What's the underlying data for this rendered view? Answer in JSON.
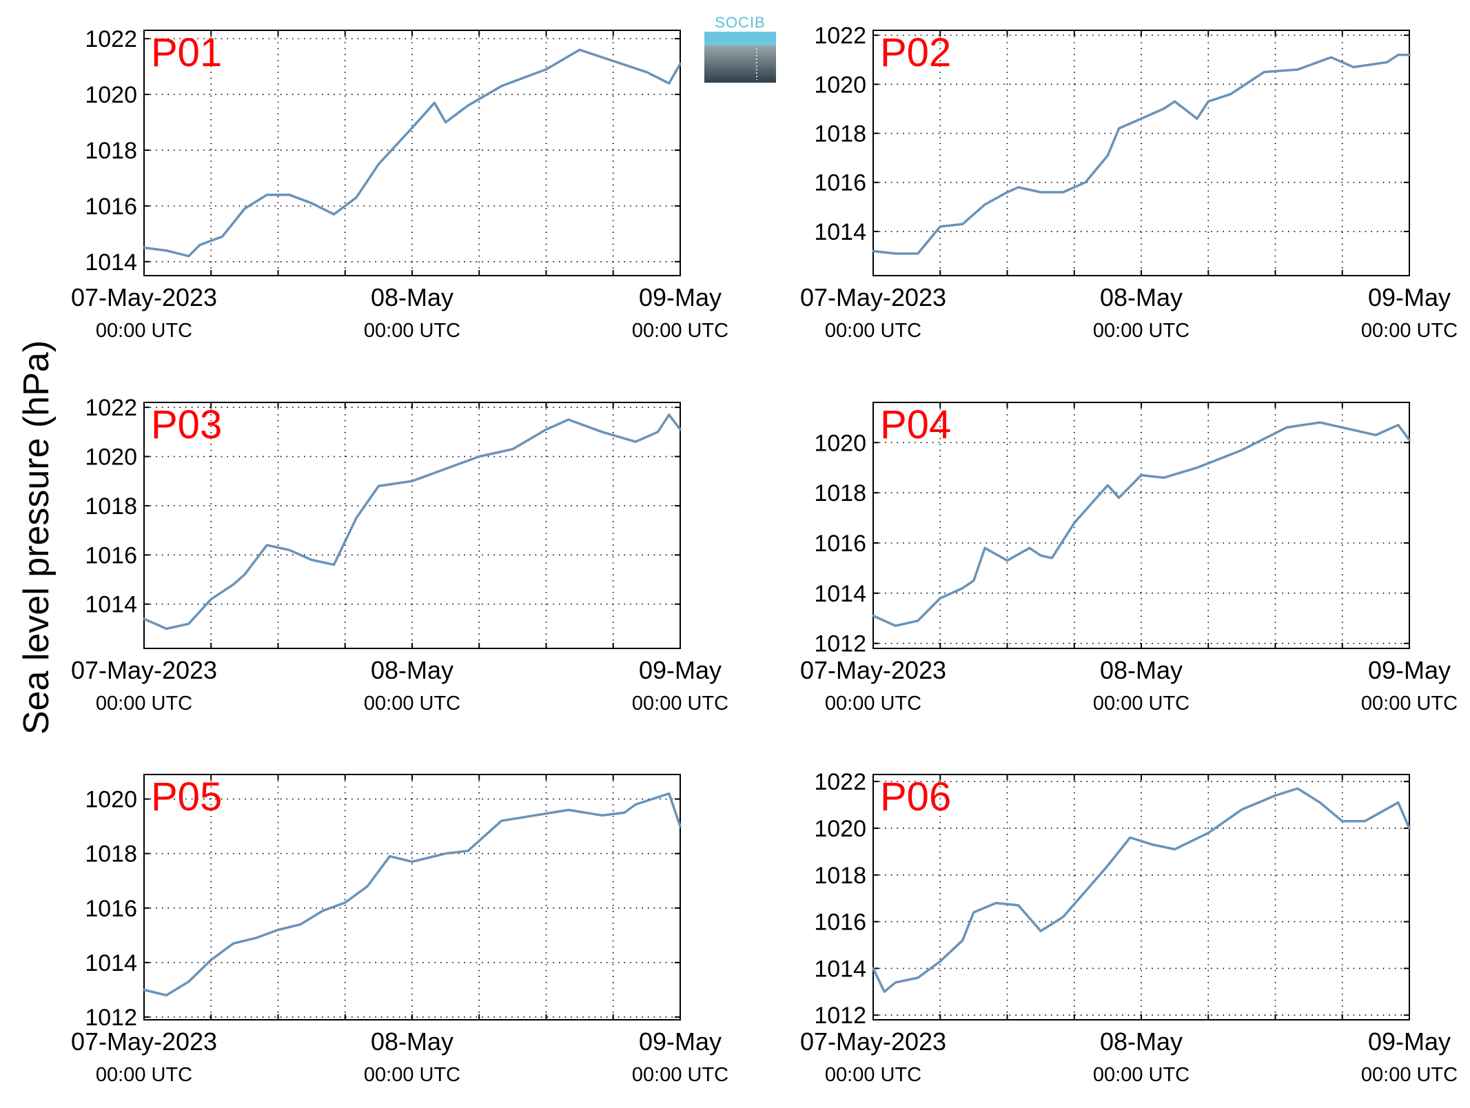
{
  "figure": {
    "ylabel": "Sea level pressure (hPa)",
    "logo_text": "SOCIB",
    "line_color": "#6a93b8",
    "label_color": "#ff0000"
  },
  "chart_data": [
    {
      "type": "line",
      "panel": "P01",
      "x_ticks": [
        {
          "date": "07-May-2023",
          "time": "00:00 UTC"
        },
        {
          "date": "08-May",
          "time": "00:00 UTC"
        },
        {
          "date": "09-May",
          "time": "00:00 UTC"
        }
      ],
      "xlim": [
        "2023-05-07 00:00",
        "2023-05-09 00:00"
      ],
      "ylim": [
        1013.5,
        1022.3
      ],
      "y_ticks": [
        1014,
        1016,
        1018,
        1020,
        1022
      ],
      "grid": true,
      "series": [
        {
          "x": [
            "2023-05-07 00:00",
            "2023-05-07 02:00",
            "2023-05-07 04:00",
            "2023-05-07 05:00",
            "2023-05-07 07:00",
            "2023-05-07 09:00",
            "2023-05-07 11:00",
            "2023-05-07 13:00",
            "2023-05-07 15:00",
            "2023-05-07 17:00",
            "2023-05-07 19:00",
            "2023-05-07 21:00",
            "2023-05-08 00:00",
            "2023-05-08 02:00",
            "2023-05-08 03:00",
            "2023-05-08 05:00",
            "2023-05-08 08:00",
            "2023-05-08 12:00",
            "2023-05-08 15:00",
            "2023-05-08 18:00",
            "2023-05-08 21:00",
            "2023-05-08 23:00",
            "2023-05-09 00:00"
          ],
          "y": [
            1014.5,
            1014.4,
            1014.2,
            1014.6,
            1014.9,
            1015.9,
            1016.4,
            1016.4,
            1016.1,
            1015.7,
            1016.3,
            1017.5,
            1018.8,
            1019.7,
            1019.0,
            1019.6,
            1020.3,
            1020.9,
            1021.6,
            1021.2,
            1020.8,
            1020.4,
            1021.1
          ]
        }
      ]
    },
    {
      "type": "line",
      "panel": "P02",
      "x_ticks": [
        {
          "date": "07-May-2023",
          "time": "00:00 UTC"
        },
        {
          "date": "08-May",
          "time": "00:00 UTC"
        },
        {
          "date": "09-May",
          "time": "00:00 UTC"
        }
      ],
      "xlim": [
        "2023-05-07 00:00",
        "2023-05-09 00:00"
      ],
      "ylim": [
        1012.2,
        1022.2
      ],
      "y_ticks": [
        1014,
        1016,
        1018,
        1020,
        1022
      ],
      "grid": true,
      "series": [
        {
          "x": [
            "2023-05-07 00:00",
            "2023-05-07 02:00",
            "2023-05-07 04:00",
            "2023-05-07 06:00",
            "2023-05-07 08:00",
            "2023-05-07 10:00",
            "2023-05-07 12:00",
            "2023-05-07 13:00",
            "2023-05-07 15:00",
            "2023-05-07 17:00",
            "2023-05-07 19:00",
            "2023-05-07 21:00",
            "2023-05-07 22:00",
            "2023-05-08 00:00",
            "2023-05-08 02:00",
            "2023-05-08 03:00",
            "2023-05-08 05:00",
            "2023-05-08 06:00",
            "2023-05-08 08:00",
            "2023-05-08 11:00",
            "2023-05-08 14:00",
            "2023-05-08 17:00",
            "2023-05-08 19:00",
            "2023-05-08 22:00",
            "2023-05-08 23:00",
            "2023-05-09 00:00"
          ],
          "y": [
            1013.2,
            1013.1,
            1013.1,
            1014.2,
            1014.3,
            1015.1,
            1015.6,
            1015.8,
            1015.6,
            1015.6,
            1016.0,
            1017.1,
            1018.2,
            1018.6,
            1019.0,
            1019.3,
            1018.6,
            1019.3,
            1019.6,
            1020.5,
            1020.6,
            1021.1,
            1020.7,
            1020.9,
            1021.2,
            1021.2
          ]
        }
      ]
    },
    {
      "type": "line",
      "panel": "P03",
      "x_ticks": [
        {
          "date": "07-May-2023",
          "time": "00:00 UTC"
        },
        {
          "date": "08-May",
          "time": "00:00 UTC"
        },
        {
          "date": "09-May",
          "time": "00:00 UTC"
        }
      ],
      "xlim": [
        "2023-05-07 00:00",
        "2023-05-09 00:00"
      ],
      "ylim": [
        1012.2,
        1022.2
      ],
      "y_ticks": [
        1014,
        1016,
        1018,
        1020,
        1022
      ],
      "grid": true,
      "series": [
        {
          "x": [
            "2023-05-07 00:00",
            "2023-05-07 02:00",
            "2023-05-07 04:00",
            "2023-05-07 06:00",
            "2023-05-07 08:00",
            "2023-05-07 09:00",
            "2023-05-07 11:00",
            "2023-05-07 13:00",
            "2023-05-07 15:00",
            "2023-05-07 17:00",
            "2023-05-07 19:00",
            "2023-05-07 21:00",
            "2023-05-08 00:00",
            "2023-05-08 03:00",
            "2023-05-08 06:00",
            "2023-05-08 09:00",
            "2023-05-08 12:00",
            "2023-05-08 14:00",
            "2023-05-08 17:00",
            "2023-05-08 20:00",
            "2023-05-08 22:00",
            "2023-05-08 23:00",
            "2023-05-09 00:00"
          ],
          "y": [
            1013.4,
            1013.0,
            1013.2,
            1014.2,
            1014.8,
            1015.2,
            1016.4,
            1016.2,
            1015.8,
            1015.6,
            1017.5,
            1018.8,
            1019.0,
            1019.5,
            1020.0,
            1020.3,
            1021.1,
            1021.5,
            1021.0,
            1020.6,
            1021.0,
            1021.7,
            1021.1
          ]
        }
      ]
    },
    {
      "type": "line",
      "panel": "P04",
      "x_ticks": [
        {
          "date": "07-May-2023",
          "time": "00:00 UTC"
        },
        {
          "date": "08-May",
          "time": "00:00 UTC"
        },
        {
          "date": "09-May",
          "time": "00:00 UTC"
        }
      ],
      "xlim": [
        "2023-05-07 00:00",
        "2023-05-09 00:00"
      ],
      "ylim": [
        1011.8,
        1021.6
      ],
      "y_ticks": [
        1012,
        1014,
        1016,
        1018,
        1020
      ],
      "grid": true,
      "series": [
        {
          "x": [
            "2023-05-07 00:00",
            "2023-05-07 02:00",
            "2023-05-07 04:00",
            "2023-05-07 06:00",
            "2023-05-07 08:00",
            "2023-05-07 09:00",
            "2023-05-07 10:00",
            "2023-05-07 12:00",
            "2023-05-07 14:00",
            "2023-05-07 15:00",
            "2023-05-07 16:00",
            "2023-05-07 18:00",
            "2023-05-07 20:00",
            "2023-05-07 21:00",
            "2023-05-07 22:00",
            "2023-05-08 00:00",
            "2023-05-08 02:00",
            "2023-05-08 05:00",
            "2023-05-08 09:00",
            "2023-05-08 13:00",
            "2023-05-08 16:00",
            "2023-05-08 19:00",
            "2023-05-08 21:00",
            "2023-05-08 23:00",
            "2023-05-09 00:00"
          ],
          "y": [
            1013.1,
            1012.7,
            1012.9,
            1013.8,
            1014.2,
            1014.5,
            1015.8,
            1015.3,
            1015.8,
            1015.5,
            1015.4,
            1016.8,
            1017.8,
            1018.3,
            1017.8,
            1018.7,
            1018.6,
            1019.0,
            1019.7,
            1020.6,
            1020.8,
            1020.5,
            1020.3,
            1020.7,
            1020.1
          ]
        }
      ]
    },
    {
      "type": "line",
      "panel": "P05",
      "x_ticks": [
        {
          "date": "07-May-2023",
          "time": "00:00 UTC"
        },
        {
          "date": "08-May",
          "time": "00:00 UTC"
        },
        {
          "date": "09-May",
          "time": "00:00 UTC"
        }
      ],
      "xlim": [
        "2023-05-07 00:00",
        "2023-05-09 00:00"
      ],
      "ylim": [
        1011.9,
        1020.9
      ],
      "y_ticks": [
        1012,
        1014,
        1016,
        1018,
        1020
      ],
      "grid": true,
      "series": [
        {
          "x": [
            "2023-05-07 00:00",
            "2023-05-07 02:00",
            "2023-05-07 04:00",
            "2023-05-07 06:00",
            "2023-05-07 08:00",
            "2023-05-07 10:00",
            "2023-05-07 12:00",
            "2023-05-07 14:00",
            "2023-05-07 16:00",
            "2023-05-07 18:00",
            "2023-05-07 20:00",
            "2023-05-07 22:00",
            "2023-05-08 00:00",
            "2023-05-08 03:00",
            "2023-05-08 05:00",
            "2023-05-08 08:00",
            "2023-05-08 11:00",
            "2023-05-08 14:00",
            "2023-05-08 17:00",
            "2023-05-08 19:00",
            "2023-05-08 20:00",
            "2023-05-08 23:00",
            "2023-05-09 00:00"
          ],
          "y": [
            1013.0,
            1012.8,
            1013.3,
            1014.1,
            1014.7,
            1014.9,
            1015.2,
            1015.4,
            1015.9,
            1016.2,
            1016.8,
            1017.9,
            1017.7,
            1018.0,
            1018.1,
            1019.2,
            1019.4,
            1019.6,
            1019.4,
            1019.5,
            1019.8,
            1020.2,
            1019.0
          ]
        }
      ]
    },
    {
      "type": "line",
      "panel": "P06",
      "x_ticks": [
        {
          "date": "07-May-2023",
          "time": "00:00 UTC"
        },
        {
          "date": "08-May",
          "time": "00:00 UTC"
        },
        {
          "date": "09-May",
          "time": "00:00 UTC"
        }
      ],
      "xlim": [
        "2023-05-07 00:00",
        "2023-05-09 00:00"
      ],
      "ylim": [
        1011.8,
        1022.3
      ],
      "y_ticks": [
        1012,
        1014,
        1016,
        1018,
        1020,
        1022
      ],
      "grid": true,
      "series": [
        {
          "x": [
            "2023-05-07 00:00",
            "2023-05-07 01:00",
            "2023-05-07 02:00",
            "2023-05-07 04:00",
            "2023-05-07 06:00",
            "2023-05-07 08:00",
            "2023-05-07 09:00",
            "2023-05-07 11:00",
            "2023-05-07 13:00",
            "2023-05-07 15:00",
            "2023-05-07 17:00",
            "2023-05-07 19:00",
            "2023-05-07 21:00",
            "2023-05-07 23:00",
            "2023-05-08 01:00",
            "2023-05-08 03:00",
            "2023-05-08 06:00",
            "2023-05-08 09:00",
            "2023-05-08 12:00",
            "2023-05-08 14:00",
            "2023-05-08 16:00",
            "2023-05-08 18:00",
            "2023-05-08 20:00",
            "2023-05-08 23:00",
            "2023-05-09 00:00"
          ],
          "y": [
            1014.0,
            1013.0,
            1013.4,
            1013.6,
            1014.3,
            1015.2,
            1016.4,
            1016.8,
            1016.7,
            1015.6,
            1016.2,
            1017.3,
            1018.4,
            1019.6,
            1019.3,
            1019.1,
            1019.8,
            1020.8,
            1021.4,
            1021.7,
            1021.1,
            1020.3,
            1020.3,
            1021.1,
            1020.0
          ]
        }
      ]
    }
  ]
}
